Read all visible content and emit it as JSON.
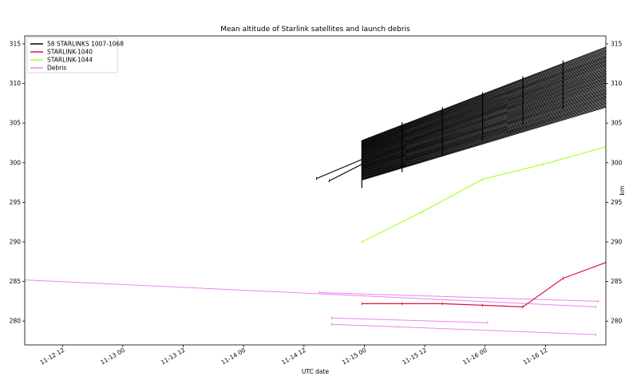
{
  "chart_data": {
    "type": "line",
    "title": "Mean altitude of Starlink satellites and launch debris",
    "xlabel": "UTC date",
    "ylabel_right": "km",
    "x_tick_labels": [
      "11-12 12",
      "11-13 00",
      "11-13 12",
      "11-14 00",
      "11-14 12",
      "11-15 00",
      "11-15 12",
      "11-16 00",
      "11-16 12"
    ],
    "x_ticks_hours": [
      12,
      24,
      36,
      48,
      60,
      72,
      84,
      96,
      108
    ],
    "x_range_hours": [
      4.5,
      120
    ],
    "x_origin_label": "11-12 00",
    "ylim": [
      277,
      316
    ],
    "y_ticks": [
      280,
      285,
      290,
      295,
      300,
      305,
      310,
      315
    ],
    "legend_position": "top-left",
    "legend": [
      {
        "label": "58 STARLINKS 1007-1068",
        "color": "#000000"
      },
      {
        "label": "STARLINK-1040",
        "color": "#dc143c"
      },
      {
        "label": "STARLINK-1044",
        "color": "#adff2f"
      },
      {
        "label": "Debris",
        "color": "#ee82ee"
      }
    ],
    "series": [
      {
        "name": "STARLINK-1044",
        "color": "#adff2f",
        "x": [
          71.5,
          83.5,
          95.5,
          107.5,
          120
        ],
        "y": [
          290.0,
          293.8,
          297.9,
          299.8,
          302.0
        ]
      },
      {
        "name": "STARLINK-1040",
        "color": "#dc143c",
        "x": [
          71.5,
          79.5,
          87.5,
          95.5,
          103.5,
          111.5,
          120
        ],
        "y": [
          282.2,
          282.2,
          282.2,
          282.0,
          281.8,
          285.4,
          287.4
        ]
      }
    ],
    "debris": [
      {
        "x": [
          4.5,
          118
        ],
        "y": [
          285.2,
          281.8
        ]
      },
      {
        "x": [
          63,
          118.5
        ],
        "y": [
          283.6,
          282.5
        ]
      },
      {
        "x": [
          65.5,
          96.5
        ],
        "y": [
          280.4,
          279.8
        ]
      },
      {
        "x": [
          65.5,
          118
        ],
        "y": [
          279.6,
          278.3
        ]
      }
    ],
    "starlinks_group": {
      "name": "58 STARLINKS 1007-1068",
      "color": "#000000",
      "band_x": [
        71.5,
        120
      ],
      "band_low": [
        297.8,
        307.0
      ],
      "band_high": [
        302.8,
        314.6
      ],
      "count": 58,
      "early_tracks": [
        {
          "x": [
            62.5,
            71.5
          ],
          "y": [
            298.0,
            300.4
          ]
        },
        {
          "x": [
            65,
            71.5
          ],
          "y": [
            297.7,
            299.8
          ]
        }
      ],
      "epochs_x": [
        71.5,
        79.5,
        87.5,
        95.5,
        103.5,
        111.5
      ],
      "epoch_low": [
        296.8,
        298.8,
        300.8,
        302.8,
        304.8,
        306.8
      ],
      "epoch_high": [
        302.8,
        305.1,
        307.0,
        308.9,
        310.9,
        312.9
      ]
    }
  }
}
